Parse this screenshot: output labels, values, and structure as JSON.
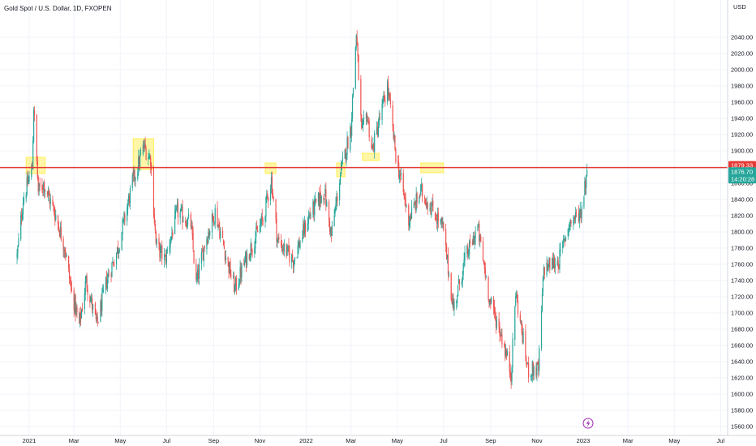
{
  "header": {
    "title": "Gold Spot / U.S. Dollar, 1D, FXOPEN"
  },
  "axis": {
    "currency": "USD"
  },
  "price_tags": {
    "horizontal_line": "1879.33",
    "last_price": "1876.70",
    "countdown": "14:20:28"
  },
  "colors": {
    "up": "#26a69a",
    "down": "#ef5350",
    "line": "#e53935",
    "last_tag": "#26a69a",
    "highlight": "#ffeb3b",
    "grid": "#f0f3fa"
  },
  "icons": {
    "bottom": "lightning-icon"
  },
  "chart_data": {
    "type": "candlestick",
    "title": "Gold Spot / U.S. Dollar, 1D, FXOPEN",
    "ylabel": "USD",
    "ylim": [
      1556,
      2080
    ],
    "y_ticks": [
      "2040.00",
      "2020.00",
      "2000.00",
      "1980.00",
      "1960.00",
      "1940.00",
      "1920.00",
      "1900.00",
      "1880.00",
      "1860.00",
      "1840.00",
      "1820.00",
      "1800.00",
      "1780.00",
      "1760.00",
      "1740.00",
      "1720.00",
      "1700.00",
      "1680.00",
      "1660.00",
      "1640.00",
      "1620.00",
      "1600.00",
      "1580.00",
      "1560.00"
    ],
    "x_ticks": [
      "2021",
      "Mar",
      "May",
      "Jul",
      "Sep",
      "Nov",
      "2022",
      "Mar",
      "May",
      "Jul",
      "Sep",
      "Nov",
      "2023",
      "Mar",
      "May",
      "Jul"
    ],
    "horizontal_line": 1879.33,
    "last_price": 1876.7,
    "price_path": [
      {
        "date": "2020-12-16",
        "close": 1770
      },
      {
        "date": "2020-12-24",
        "close": 1840
      },
      {
        "date": "2021-01-05",
        "close": 1880
      },
      {
        "date": "2021-01-07",
        "close": 1955
      },
      {
        "date": "2021-01-13",
        "close": 1850
      },
      {
        "date": "2021-01-20",
        "close": 1860
      },
      {
        "date": "2021-02-05",
        "close": 1820
      },
      {
        "date": "2021-02-17",
        "close": 1780
      },
      {
        "date": "2021-02-25",
        "close": 1730
      },
      {
        "date": "2021-03-08",
        "close": 1685
      },
      {
        "date": "2021-03-17",
        "close": 1740
      },
      {
        "date": "2021-03-31",
        "close": 1685
      },
      {
        "date": "2021-04-13",
        "close": 1740
      },
      {
        "date": "2021-04-28",
        "close": 1780
      },
      {
        "date": "2021-05-17",
        "close": 1860
      },
      {
        "date": "2021-06-01",
        "close": 1905
      },
      {
        "date": "2021-06-10",
        "close": 1890
      },
      {
        "date": "2021-06-17",
        "close": 1785
      },
      {
        "date": "2021-06-29",
        "close": 1765
      },
      {
        "date": "2021-07-15",
        "close": 1825
      },
      {
        "date": "2021-08-02",
        "close": 1810
      },
      {
        "date": "2021-08-09",
        "close": 1735
      },
      {
        "date": "2021-08-20",
        "close": 1785
      },
      {
        "date": "2021-09-03",
        "close": 1825
      },
      {
        "date": "2021-09-20",
        "close": 1760
      },
      {
        "date": "2021-09-29",
        "close": 1730
      },
      {
        "date": "2021-10-15",
        "close": 1770
      },
      {
        "date": "2021-11-05",
        "close": 1815
      },
      {
        "date": "2021-11-16",
        "close": 1865
      },
      {
        "date": "2021-11-24",
        "close": 1790
      },
      {
        "date": "2021-12-15",
        "close": 1765
      },
      {
        "date": "2022-01-05",
        "close": 1820
      },
      {
        "date": "2022-01-25",
        "close": 1850
      },
      {
        "date": "2022-02-03",
        "close": 1795
      },
      {
        "date": "2022-02-15",
        "close": 1870
      },
      {
        "date": "2022-03-01",
        "close": 1930
      },
      {
        "date": "2022-03-08",
        "close": 2045
      },
      {
        "date": "2022-03-15",
        "close": 1920
      },
      {
        "date": "2022-03-22",
        "close": 1945
      },
      {
        "date": "2022-03-29",
        "close": 1900
      },
      {
        "date": "2022-04-18",
        "close": 1980
      },
      {
        "date": "2022-04-29",
        "close": 1895
      },
      {
        "date": "2022-05-16",
        "close": 1815
      },
      {
        "date": "2022-06-01",
        "close": 1850
      },
      {
        "date": "2022-06-15",
        "close": 1830
      },
      {
        "date": "2022-06-30",
        "close": 1805
      },
      {
        "date": "2022-07-14",
        "close": 1705
      },
      {
        "date": "2022-07-29",
        "close": 1765
      },
      {
        "date": "2022-08-15",
        "close": 1805
      },
      {
        "date": "2022-08-31",
        "close": 1715
      },
      {
        "date": "2022-09-16",
        "close": 1670
      },
      {
        "date": "2022-09-28",
        "close": 1625
      },
      {
        "date": "2022-10-04",
        "close": 1725
      },
      {
        "date": "2022-10-20",
        "close": 1630
      },
      {
        "date": "2022-11-03",
        "close": 1630
      },
      {
        "date": "2022-11-10",
        "close": 1755
      },
      {
        "date": "2022-11-30",
        "close": 1765
      },
      {
        "date": "2022-12-13",
        "close": 1810
      },
      {
        "date": "2022-12-29",
        "close": 1825
      },
      {
        "date": "2023-01-06",
        "close": 1877
      }
    ],
    "highlight_zones": [
      {
        "from": "2020-12-28",
        "to": "2021-01-22",
        "low": 1872,
        "high": 1892
      },
      {
        "from": "2021-05-18",
        "to": "2021-06-14",
        "low": 1877,
        "high": 1915
      },
      {
        "from": "2021-11-08",
        "to": "2021-11-22",
        "low": 1872,
        "high": 1885
      },
      {
        "from": "2022-02-10",
        "to": "2022-02-21",
        "low": 1868,
        "high": 1885
      },
      {
        "from": "2022-03-16",
        "to": "2022-04-07",
        "low": 1888,
        "high": 1897
      },
      {
        "from": "2022-06-01",
        "to": "2022-07-01",
        "low": 1873,
        "high": 1885
      }
    ]
  }
}
